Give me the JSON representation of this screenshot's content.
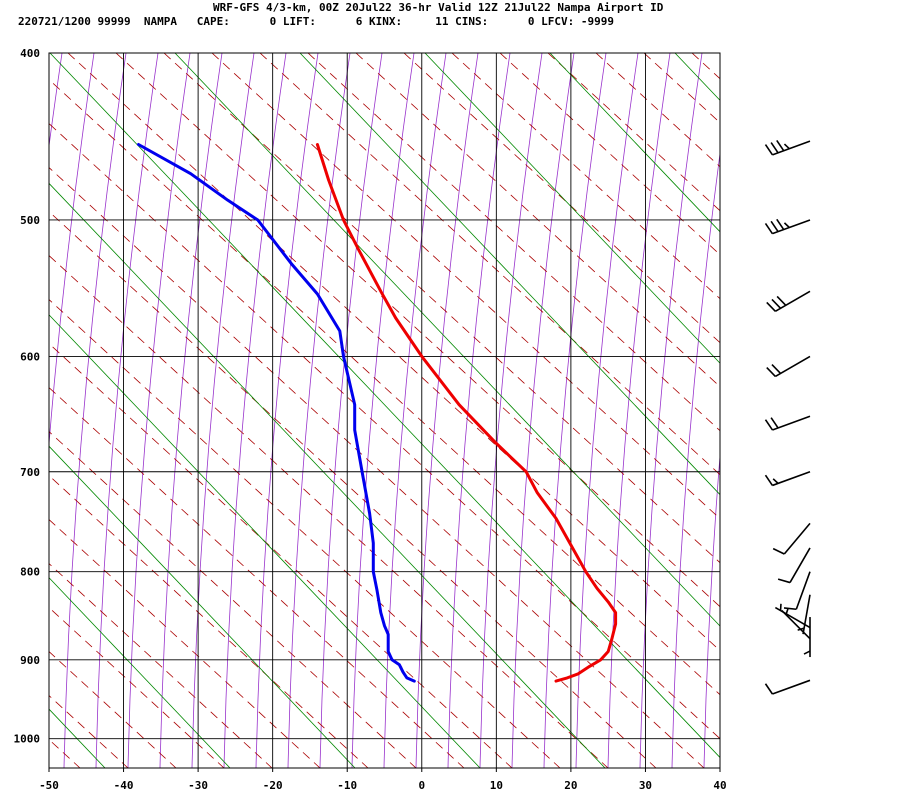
{
  "header": {
    "line1": "WRF-GFS 4/3-km, 00Z 20Jul22 36-hr Valid 12Z 21Jul22 Nampa Airport ID",
    "line2": "220721/1200 99999  NAMPA   CAPE:      0 LIFT:      6 KINX:     11 CINS:      0 LFCV: -9999"
  },
  "chart_data": {
    "type": "line",
    "title": "WRF-GFS 4/3-km, 00Z 20Jul22 36-hr Valid 12Z 21Jul22 Nampa Airport ID",
    "xlabel": "",
    "ylabel": "",
    "x_ticks": [
      -50,
      -40,
      -30,
      -20,
      -10,
      0,
      10,
      20,
      30,
      40
    ],
    "p_ticks": [
      400,
      500,
      600,
      700,
      800,
      900,
      1000
    ],
    "xlim": [
      -50,
      40
    ],
    "plim": [
      400,
      1040
    ],
    "y_scale": "log-pressure",
    "skew": true,
    "grid": true,
    "colors": {
      "temperature": "#ee0000",
      "dewpoint": "#0000ee",
      "dry_adiabat": "#aa0000",
      "moist_adiabat": "#9933cc",
      "mixing_ratio": "#008800",
      "wind_barb": "#000000"
    },
    "series": [
      {
        "name": "",
        "role": "temperature",
        "points": [
          {
            "p": 926,
            "x": 18
          },
          {
            "p": 922,
            "x": 19.5
          },
          {
            "p": 917,
            "x": 21
          },
          {
            "p": 908,
            "x": 22.5
          },
          {
            "p": 900,
            "x": 24
          },
          {
            "p": 890,
            "x": 25
          },
          {
            "p": 875,
            "x": 25.5
          },
          {
            "p": 858,
            "x": 26
          },
          {
            "p": 845,
            "x": 26
          },
          {
            "p": 833,
            "x": 25
          },
          {
            "p": 818,
            "x": 23.5
          },
          {
            "p": 800,
            "x": 22
          },
          {
            "p": 772,
            "x": 20
          },
          {
            "p": 745,
            "x": 18
          },
          {
            "p": 720,
            "x": 15.5
          },
          {
            "p": 700,
            "x": 14
          },
          {
            "p": 674,
            "x": 10
          },
          {
            "p": 640,
            "x": 5
          },
          {
            "p": 600,
            "x": 0
          },
          {
            "p": 570,
            "x": -3.5
          },
          {
            "p": 550,
            "x": -5.5
          },
          {
            "p": 520,
            "x": -8.5
          },
          {
            "p": 500,
            "x": -10.5
          },
          {
            "p": 474,
            "x": -12.5
          },
          {
            "p": 452,
            "x": -14
          }
        ]
      },
      {
        "name": "",
        "role": "dewpoint",
        "points": [
          {
            "p": 926,
            "x": -1
          },
          {
            "p": 922,
            "x": -2
          },
          {
            "p": 915,
            "x": -2.5
          },
          {
            "p": 906,
            "x": -3
          },
          {
            "p": 900,
            "x": -4
          },
          {
            "p": 890,
            "x": -4.5
          },
          {
            "p": 878,
            "x": -4.5
          },
          {
            "p": 870,
            "x": -4.5
          },
          {
            "p": 860,
            "x": -5
          },
          {
            "p": 845,
            "x": -5.5
          },
          {
            "p": 820,
            "x": -6
          },
          {
            "p": 800,
            "x": -6.5
          },
          {
            "p": 770,
            "x": -6.5
          },
          {
            "p": 740,
            "x": -7
          },
          {
            "p": 700,
            "x": -8
          },
          {
            "p": 662,
            "x": -9
          },
          {
            "p": 640,
            "x": -9
          },
          {
            "p": 600,
            "x": -10.5
          },
          {
            "p": 580,
            "x": -11
          },
          {
            "p": 552,
            "x": -14
          },
          {
            "p": 530,
            "x": -17.5
          },
          {
            "p": 500,
            "x": -22
          },
          {
            "p": 487,
            "x": -26
          },
          {
            "p": 470,
            "x": -31
          },
          {
            "p": 452,
            "x": -38
          }
        ]
      }
    ],
    "wind_barbs": [
      {
        "p": 450,
        "dir": 250,
        "speed": 35
      },
      {
        "p": 500,
        "dir": 250,
        "speed": 35
      },
      {
        "p": 550,
        "dir": 240,
        "speed": 30
      },
      {
        "p": 600,
        "dir": 240,
        "speed": 20
      },
      {
        "p": 650,
        "dir": 250,
        "speed": 20
      },
      {
        "p": 700,
        "dir": 250,
        "speed": 15
      },
      {
        "p": 750,
        "dir": 220,
        "speed": 10
      },
      {
        "p": 775,
        "dir": 210,
        "speed": 10
      },
      {
        "p": 800,
        "dir": 200,
        "speed": 10
      },
      {
        "p": 825,
        "dir": 190,
        "speed": 5
      },
      {
        "p": 850,
        "dir": 180,
        "speed": 5
      },
      {
        "p": 862,
        "dir": 300,
        "speed": 5
      },
      {
        "p": 875,
        "dir": 315,
        "speed": 5
      },
      {
        "p": 925,
        "dir": 250,
        "speed": 10
      }
    ]
  }
}
